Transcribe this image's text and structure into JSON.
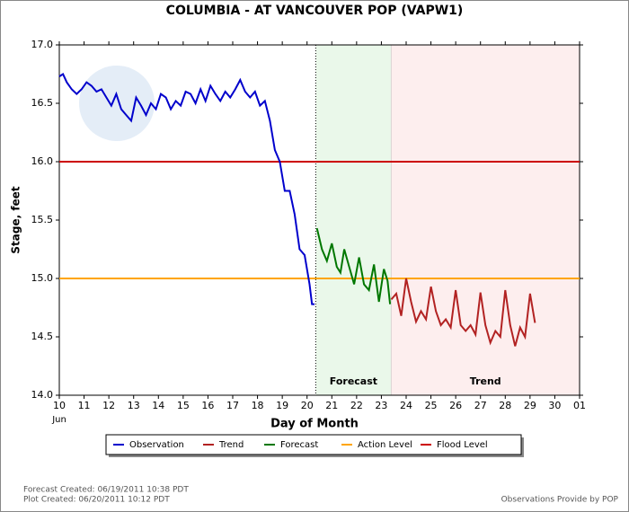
{
  "chart_data": {
    "type": "line",
    "title": "COLUMBIA - AT VANCOUVER POP  (VAPW1)",
    "xlabel": "Day of Month",
    "ylabel": "Stage, feet",
    "x_sublabel": "Jun",
    "xlim": [
      10,
      31
    ],
    "ylim": [
      14.0,
      17.0
    ],
    "xticks": [
      10,
      11,
      12,
      13,
      14,
      15,
      16,
      17,
      18,
      19,
      20,
      21,
      22,
      23,
      24,
      25,
      26,
      27,
      28,
      29,
      30,
      {
        "value": 31,
        "label": "01"
      }
    ],
    "yticks": [
      {
        "value": 14.0,
        "label": "14.0"
      },
      14.5,
      {
        "value": 15.0,
        "label": "15.0"
      },
      15.5,
      {
        "value": 16.0,
        "label": "16.0"
      },
      16.5,
      {
        "value": 17.0,
        "label": "17.0"
      }
    ],
    "now": 20.35,
    "regions": [
      {
        "name": "Forecast",
        "range": [
          20.35,
          23.4
        ],
        "color": "#eaf8ea"
      },
      {
        "name": "Trend",
        "range": [
          23.4,
          31
        ],
        "color": "#fdeeee"
      }
    ],
    "series": [
      {
        "name": "Observation",
        "color": "#0000cc",
        "x": [
          10.0,
          10.15,
          10.3,
          10.5,
          10.7,
          10.9,
          11.1,
          11.3,
          11.5,
          11.7,
          11.9,
          12.1,
          12.3,
          12.5,
          12.7,
          12.9,
          13.1,
          13.3,
          13.5,
          13.7,
          13.9,
          14.1,
          14.3,
          14.5,
          14.7,
          14.9,
          15.1,
          15.3,
          15.5,
          15.7,
          15.9,
          16.1,
          16.3,
          16.5,
          16.7,
          16.9,
          17.1,
          17.3,
          17.5,
          17.7,
          17.9,
          18.1,
          18.3,
          18.5,
          18.7,
          18.9,
          19.1,
          19.3,
          19.5,
          19.7,
          19.9,
          20.1,
          20.2,
          20.3
        ],
        "values": [
          16.73,
          16.75,
          16.68,
          16.62,
          16.58,
          16.62,
          16.68,
          16.65,
          16.6,
          16.62,
          16.55,
          16.48,
          16.58,
          16.45,
          16.4,
          16.35,
          16.55,
          16.48,
          16.4,
          16.5,
          16.45,
          16.58,
          16.55,
          16.45,
          16.52,
          16.48,
          16.6,
          16.58,
          16.5,
          16.62,
          16.52,
          16.65,
          16.58,
          16.52,
          16.6,
          16.55,
          16.62,
          16.7,
          16.6,
          16.55,
          16.6,
          16.48,
          16.52,
          16.35,
          16.1,
          16.0,
          15.75,
          15.75,
          15.55,
          15.25,
          15.2,
          14.95,
          14.78,
          14.78
        ]
      },
      {
        "name": "Trend",
        "color": "#b22222",
        "x": [
          23.4,
          23.6,
          23.8,
          24.0,
          24.2,
          24.4,
          24.6,
          24.8,
          25.0,
          25.2,
          25.4,
          25.6,
          25.8,
          26.0,
          26.2,
          26.4,
          26.6,
          26.8,
          27.0,
          27.2,
          27.4,
          27.6,
          27.8,
          28.0,
          28.2,
          28.4,
          28.6,
          28.8,
          29.0,
          29.2
        ],
        "values": [
          14.82,
          14.87,
          14.68,
          15.0,
          14.8,
          14.63,
          14.72,
          14.65,
          14.93,
          14.72,
          14.6,
          14.65,
          14.58,
          14.9,
          14.6,
          14.55,
          14.6,
          14.52,
          14.88,
          14.6,
          14.45,
          14.55,
          14.5,
          14.9,
          14.6,
          14.42,
          14.58,
          14.5,
          14.87,
          14.62
        ]
      },
      {
        "name": "Forecast",
        "color": "#007700",
        "x": [
          20.4,
          20.6,
          20.8,
          21.0,
          21.2,
          21.35,
          21.5,
          21.7,
          21.9,
          22.1,
          22.3,
          22.5,
          22.7,
          22.9,
          23.1,
          23.25,
          23.35
        ],
        "values": [
          15.43,
          15.25,
          15.15,
          15.3,
          15.1,
          15.05,
          15.25,
          15.1,
          14.95,
          15.18,
          14.95,
          14.9,
          15.12,
          14.8,
          15.08,
          14.98,
          14.78
        ]
      }
    ],
    "hlines": [
      {
        "name": "Action Level",
        "value": 15.0,
        "color": "#ffa500"
      },
      {
        "name": "Flood Level",
        "value": 16.0,
        "color": "#cc0000"
      }
    ],
    "footer": {
      "forecast_created": "Forecast Created: 06/19/2011 10:38 PDT",
      "plot_created": "Plot Created: 06/20/2011 10:12 PDT",
      "source": "Observations Provide by POP"
    }
  }
}
